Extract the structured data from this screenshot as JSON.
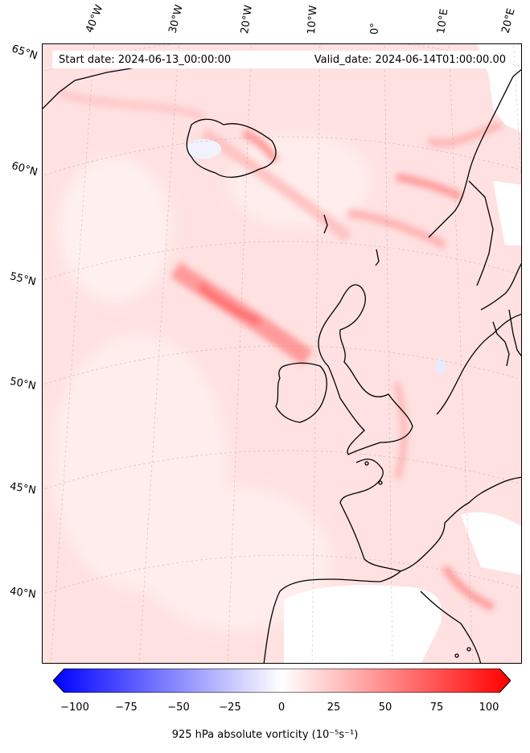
{
  "header": {
    "start_date": "Start date: 2024-06-13_00:00:00",
    "valid_date": "Valid_date: 2024-06-14T01:00:00.00"
  },
  "longitude_labels": [
    "40°W",
    "30°W",
    "20°W",
    "10°W",
    "0°",
    "10°E",
    "20°E"
  ],
  "latitude_labels": [
    "65°N",
    "60°N",
    "55°N",
    "50°N",
    "45°N",
    "40°N"
  ],
  "colorbar": {
    "ticks": [
      "−100",
      "−75",
      "−50",
      "−25",
      "0",
      "25",
      "50",
      "75",
      "100"
    ],
    "range": [
      -100,
      100
    ],
    "cmap": "bwr",
    "label": "925 hPa absolute vorticity (10⁻⁵s⁻¹)"
  },
  "colors": {
    "negative": "#0000ff",
    "zero": "#ffffff",
    "positive": "#ff0000",
    "coastline": "#000000"
  }
}
